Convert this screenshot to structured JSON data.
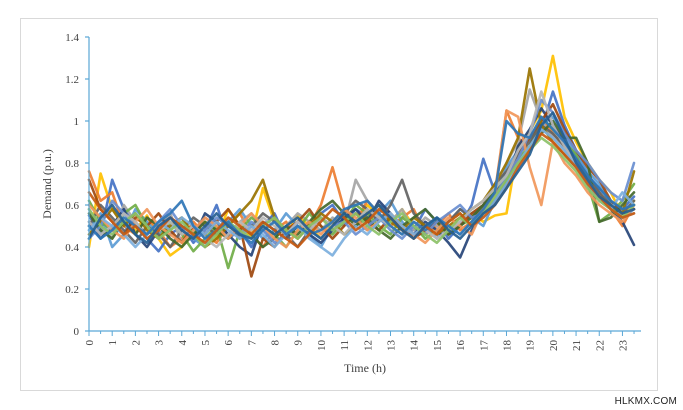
{
  "watermark": "HLKMX.COM",
  "chart_data": {
    "type": "line",
    "xlabel": "Time (h)",
    "ylabel": "Demand  (p.u.)",
    "xlim": [
      0,
      23.8
    ],
    "ylim": [
      0,
      1.4
    ],
    "x_ticks": [
      "0",
      "1",
      "2",
      "3",
      "4",
      "5",
      "6",
      "7",
      "8",
      "9",
      "10",
      "11",
      "12",
      "13",
      "14",
      "15",
      "16",
      "17",
      "18",
      "19",
      "20",
      "21",
      "22",
      "23"
    ],
    "y_ticks": [
      "0",
      "0.2",
      "0.4",
      "0.6",
      "0.8",
      "1",
      "1.2",
      "1.4"
    ],
    "grid": false,
    "legend": "none",
    "axis_color": "#5aa7d6",
    "x": [
      0,
      0.5,
      1,
      1.5,
      2,
      2.5,
      3,
      3.5,
      4,
      4.5,
      5,
      5.5,
      6,
      6.5,
      7,
      7.5,
      8,
      8.5,
      9,
      9.5,
      10,
      10.5,
      11,
      11.5,
      12,
      12.5,
      13,
      13.5,
      14,
      14.5,
      15,
      15.5,
      16,
      16.5,
      17,
      17.5,
      18,
      18.5,
      19,
      19.5,
      20,
      20.5,
      21,
      21.5,
      22,
      22.5,
      23,
      23.5
    ],
    "series": [
      {
        "color": "#ffc000",
        "values": [
          0.4,
          0.75,
          0.58,
          0.52,
          0.48,
          0.55,
          0.44,
          0.36,
          0.4,
          0.48,
          0.52,
          0.44,
          0.58,
          0.5,
          0.45,
          0.68,
          0.52,
          0.46,
          0.55,
          0.5,
          0.44,
          0.5,
          0.56,
          0.52,
          0.6,
          0.55,
          0.52,
          0.58,
          0.5,
          0.46,
          0.52,
          0.48,
          0.5,
          0.56,
          0.52,
          0.55,
          0.56,
          0.88,
          0.95,
          1.05,
          1.31,
          1.02,
          0.9,
          0.8,
          0.72,
          0.66,
          0.55,
          0.62
        ]
      },
      {
        "color": "#4472c4",
        "values": [
          0.55,
          0.46,
          0.72,
          0.58,
          0.5,
          0.44,
          0.38,
          0.46,
          0.5,
          0.42,
          0.48,
          0.6,
          0.44,
          0.48,
          0.4,
          0.5,
          0.56,
          0.44,
          0.52,
          0.48,
          0.56,
          0.6,
          0.52,
          0.58,
          0.54,
          0.6,
          0.56,
          0.5,
          0.48,
          0.58,
          0.52,
          0.44,
          0.5,
          0.6,
          0.82,
          0.66,
          0.72,
          0.8,
          0.88,
          0.96,
          1.14,
          0.98,
          0.86,
          0.74,
          0.68,
          0.62,
          0.58,
          0.64
        ]
      },
      {
        "color": "#ed7d31",
        "values": [
          0.76,
          0.62,
          0.66,
          0.5,
          0.46,
          0.54,
          0.48,
          0.4,
          0.44,
          0.52,
          0.46,
          0.42,
          0.5,
          0.56,
          0.46,
          0.4,
          0.48,
          0.52,
          0.44,
          0.5,
          0.6,
          0.78,
          0.58,
          0.52,
          0.62,
          0.56,
          0.5,
          0.54,
          0.58,
          0.46,
          0.5,
          0.56,
          0.48,
          0.52,
          0.6,
          0.66,
          1.05,
          0.92,
          0.86,
          1.02,
          0.94,
          0.88,
          0.82,
          0.72,
          0.66,
          0.58,
          0.5,
          0.6
        ]
      },
      {
        "color": "#a5a5a5",
        "values": [
          0.58,
          0.5,
          0.44,
          0.6,
          0.52,
          0.46,
          0.5,
          0.56,
          0.42,
          0.48,
          0.54,
          0.5,
          0.46,
          0.52,
          0.56,
          0.48,
          0.44,
          0.5,
          0.56,
          0.52,
          0.48,
          0.54,
          0.5,
          0.72,
          0.62,
          0.56,
          0.52,
          0.58,
          0.48,
          0.54,
          0.5,
          0.46,
          0.52,
          0.56,
          0.6,
          0.64,
          0.8,
          0.9,
          1.15,
          1.0,
          0.92,
          0.86,
          0.8,
          0.7,
          0.64,
          0.58,
          0.56,
          0.58
        ]
      },
      {
        "color": "#5b9bd5",
        "values": [
          0.48,
          0.56,
          0.4,
          0.46,
          0.58,
          0.52,
          0.46,
          0.5,
          0.54,
          0.44,
          0.4,
          0.48,
          0.52,
          0.58,
          0.5,
          0.44,
          0.48,
          0.56,
          0.5,
          0.46,
          0.4,
          0.5,
          0.56,
          0.52,
          0.48,
          0.56,
          0.62,
          0.52,
          0.46,
          0.5,
          0.44,
          0.52,
          0.58,
          0.54,
          0.5,
          0.62,
          0.78,
          0.86,
          0.92,
          0.98,
          1.02,
          0.94,
          0.84,
          0.76,
          0.7,
          0.6,
          0.54,
          0.58
        ]
      },
      {
        "color": "#70ad47",
        "values": [
          0.62,
          0.52,
          0.48,
          0.56,
          0.6,
          0.5,
          0.44,
          0.52,
          0.46,
          0.38,
          0.44,
          0.5,
          0.3,
          0.48,
          0.54,
          0.5,
          0.46,
          0.4,
          0.48,
          0.56,
          0.5,
          0.46,
          0.52,
          0.6,
          0.56,
          0.5,
          0.46,
          0.54,
          0.5,
          0.44,
          0.48,
          0.52,
          0.56,
          0.5,
          0.58,
          0.68,
          0.74,
          0.82,
          0.88,
          1.02,
          0.96,
          0.9,
          0.84,
          0.7,
          0.52,
          0.56,
          0.62,
          0.7
        ]
      },
      {
        "color": "#264478",
        "values": [
          0.52,
          0.44,
          0.5,
          0.58,
          0.46,
          0.4,
          0.48,
          0.54,
          0.5,
          0.44,
          0.56,
          0.52,
          0.46,
          0.4,
          0.36,
          0.52,
          0.48,
          0.44,
          0.5,
          0.46,
          0.42,
          0.48,
          0.54,
          0.58,
          0.52,
          0.62,
          0.56,
          0.5,
          0.46,
          0.52,
          0.48,
          0.42,
          0.35,
          0.48,
          0.56,
          0.62,
          0.7,
          0.88,
          0.96,
          1.06,
          0.98,
          0.9,
          0.8,
          0.72,
          0.64,
          0.58,
          0.52,
          0.41
        ]
      },
      {
        "color": "#9e480e",
        "values": [
          0.72,
          0.58,
          0.52,
          0.46,
          0.54,
          0.5,
          0.56,
          0.48,
          0.42,
          0.5,
          0.46,
          0.52,
          0.58,
          0.5,
          0.26,
          0.44,
          0.4,
          0.48,
          0.52,
          0.58,
          0.5,
          0.44,
          0.5,
          0.56,
          0.52,
          0.48,
          0.54,
          0.5,
          0.44,
          0.48,
          0.52,
          0.46,
          0.5,
          0.56,
          0.6,
          0.64,
          0.72,
          0.84,
          0.92,
          1.0,
          1.08,
          0.96,
          0.86,
          0.78,
          0.72,
          0.62,
          0.56,
          0.58
        ]
      },
      {
        "color": "#636363",
        "values": [
          0.5,
          0.6,
          0.54,
          0.48,
          0.42,
          0.5,
          0.46,
          0.4,
          0.48,
          0.54,
          0.5,
          0.46,
          0.52,
          0.44,
          0.5,
          0.56,
          0.52,
          0.46,
          0.4,
          0.48,
          0.54,
          0.5,
          0.56,
          0.62,
          0.58,
          0.52,
          0.6,
          0.72,
          0.56,
          0.5,
          0.46,
          0.52,
          0.58,
          0.54,
          0.6,
          0.7,
          0.76,
          0.84,
          0.9,
          0.98,
          0.94,
          0.88,
          0.82,
          0.74,
          0.66,
          0.6,
          0.56,
          0.62
        ]
      },
      {
        "color": "#997300",
        "values": [
          0.46,
          0.52,
          0.58,
          0.5,
          0.56,
          0.48,
          0.44,
          0.5,
          0.54,
          0.46,
          0.4,
          0.44,
          0.5,
          0.56,
          0.62,
          0.72,
          0.54,
          0.48,
          0.44,
          0.5,
          0.56,
          0.52,
          0.46,
          0.5,
          0.56,
          0.6,
          0.52,
          0.48,
          0.54,
          0.5,
          0.46,
          0.5,
          0.54,
          0.58,
          0.62,
          0.7,
          0.8,
          0.92,
          1.25,
          0.98,
          0.9,
          0.84,
          0.78,
          0.72,
          0.64,
          0.6,
          0.56,
          0.76
        ]
      },
      {
        "color": "#43682b",
        "values": [
          0.56,
          0.48,
          0.44,
          0.52,
          0.46,
          0.54,
          0.5,
          0.44,
          0.4,
          0.46,
          0.52,
          0.48,
          0.44,
          0.5,
          0.46,
          0.4,
          0.44,
          0.5,
          0.46,
          0.52,
          0.58,
          0.62,
          0.56,
          0.5,
          0.54,
          0.48,
          0.44,
          0.5,
          0.54,
          0.58,
          0.52,
          0.46,
          0.5,
          0.54,
          0.6,
          0.66,
          0.72,
          0.8,
          0.86,
          0.94,
          1.0,
          0.92,
          0.92,
          0.8,
          0.52,
          0.54,
          0.6,
          0.66
        ]
      },
      {
        "color": "#698ed0",
        "values": [
          0.44,
          0.5,
          0.62,
          0.56,
          0.5,
          0.46,
          0.52,
          0.58,
          0.5,
          0.44,
          0.48,
          0.54,
          0.5,
          0.46,
          0.52,
          0.48,
          0.42,
          0.46,
          0.52,
          0.48,
          0.44,
          0.5,
          0.52,
          0.46,
          0.5,
          0.54,
          0.48,
          0.44,
          0.5,
          0.46,
          0.52,
          0.56,
          0.6,
          0.54,
          0.56,
          0.64,
          0.74,
          0.82,
          0.94,
          1.1,
          1.04,
          0.94,
          0.86,
          0.8,
          0.72,
          0.66,
          0.62,
          0.8
        ]
      },
      {
        "color": "#f1975a",
        "values": [
          0.6,
          0.54,
          0.48,
          0.44,
          0.52,
          0.58,
          0.5,
          0.46,
          0.42,
          0.48,
          0.54,
          0.5,
          0.44,
          0.5,
          0.56,
          0.5,
          0.44,
          0.4,
          0.48,
          0.52,
          0.46,
          0.52,
          0.58,
          0.54,
          0.48,
          0.52,
          0.56,
          0.5,
          0.46,
          0.42,
          0.48,
          0.54,
          0.5,
          0.46,
          0.58,
          0.64,
          1.05,
          1.02,
          0.78,
          0.6,
          0.9,
          0.8,
          0.74,
          0.66,
          0.6,
          0.56,
          0.52,
          0.6
        ]
      },
      {
        "color": "#b7b7b7",
        "values": [
          0.52,
          0.46,
          0.5,
          0.56,
          0.52,
          0.44,
          0.48,
          0.52,
          0.46,
          0.5,
          0.44,
          0.4,
          0.46,
          0.52,
          0.48,
          0.54,
          0.5,
          0.46,
          0.52,
          0.48,
          0.54,
          0.5,
          0.46,
          0.52,
          0.58,
          0.54,
          0.5,
          0.46,
          0.52,
          0.48,
          0.44,
          0.48,
          0.52,
          0.58,
          0.62,
          0.68,
          0.74,
          0.86,
          0.94,
          1.14,
          0.98,
          0.88,
          0.8,
          0.72,
          0.64,
          0.58,
          0.54,
          0.56
        ]
      },
      {
        "color": "#7cafdd",
        "values": [
          0.48,
          0.54,
          0.5,
          0.46,
          0.4,
          0.46,
          0.52,
          0.48,
          0.54,
          0.5,
          0.46,
          0.52,
          0.48,
          0.44,
          0.5,
          0.46,
          0.4,
          0.46,
          0.5,
          0.44,
          0.4,
          0.36,
          0.44,
          0.5,
          0.46,
          0.52,
          0.56,
          0.5,
          0.46,
          0.5,
          0.54,
          0.5,
          0.46,
          0.52,
          0.56,
          0.62,
          0.7,
          0.8,
          0.88,
          0.96,
          0.92,
          0.86,
          0.78,
          0.7,
          0.62,
          0.58,
          0.66,
          0.6
        ]
      },
      {
        "color": "#8cc168",
        "values": [
          0.58,
          0.5,
          0.46,
          0.52,
          0.56,
          0.5,
          0.44,
          0.48,
          0.52,
          0.46,
          0.4,
          0.46,
          0.52,
          0.48,
          0.44,
          0.5,
          0.54,
          0.48,
          0.44,
          0.5,
          0.54,
          0.48,
          0.52,
          0.56,
          0.5,
          0.46,
          0.52,
          0.56,
          0.5,
          0.46,
          0.42,
          0.48,
          0.54,
          0.5,
          0.56,
          0.64,
          0.72,
          0.8,
          0.86,
          0.92,
          0.88,
          0.82,
          0.76,
          0.68,
          0.62,
          0.58,
          0.54,
          0.6
        ]
      },
      {
        "color": "#2e75b6",
        "values": [
          0.5,
          0.44,
          0.48,
          0.54,
          0.5,
          0.46,
          0.52,
          0.56,
          0.62,
          0.5,
          0.44,
          0.48,
          0.52,
          0.46,
          0.42,
          0.48,
          0.52,
          0.46,
          0.5,
          0.46,
          0.48,
          0.52,
          0.58,
          0.6,
          0.62,
          0.56,
          0.5,
          0.46,
          0.52,
          0.48,
          0.54,
          0.5,
          0.46,
          0.52,
          0.58,
          0.66,
          1.0,
          0.94,
          0.92,
          1.02,
          0.96,
          0.9,
          0.82,
          0.74,
          0.68,
          0.62,
          0.58,
          0.6
        ]
      },
      {
        "color": "#c55a11",
        "values": [
          0.66,
          0.58,
          0.52,
          0.46,
          0.5,
          0.44,
          0.48,
          0.54,
          0.5,
          0.46,
          0.42,
          0.48,
          0.54,
          0.5,
          0.46,
          0.52,
          0.48,
          0.44,
          0.4,
          0.46,
          0.52,
          0.58,
          0.54,
          0.48,
          0.52,
          0.58,
          0.54,
          0.48,
          0.44,
          0.5,
          0.46,
          0.52,
          0.56,
          0.5,
          0.54,
          0.6,
          0.68,
          0.78,
          0.86,
          0.94,
          0.9,
          0.84,
          0.78,
          0.7,
          0.64,
          0.58,
          0.54,
          0.56
        ]
      },
      {
        "color": "#255e91",
        "values": [
          0.44,
          0.54,
          0.6,
          0.52,
          0.46,
          0.42,
          0.5,
          0.54,
          0.48,
          0.44,
          0.5,
          0.56,
          0.5,
          0.46,
          0.44,
          0.5,
          0.46,
          0.5,
          0.54,
          0.48,
          0.44,
          0.5,
          0.56,
          0.52,
          0.56,
          0.6,
          0.54,
          0.48,
          0.44,
          0.5,
          0.54,
          0.48,
          0.44,
          0.5,
          0.56,
          0.6,
          0.68,
          0.76,
          0.84,
          0.98,
          1.04,
          0.92,
          0.8,
          0.72,
          0.64,
          0.6,
          0.56,
          0.58
        ]
      }
    ]
  }
}
